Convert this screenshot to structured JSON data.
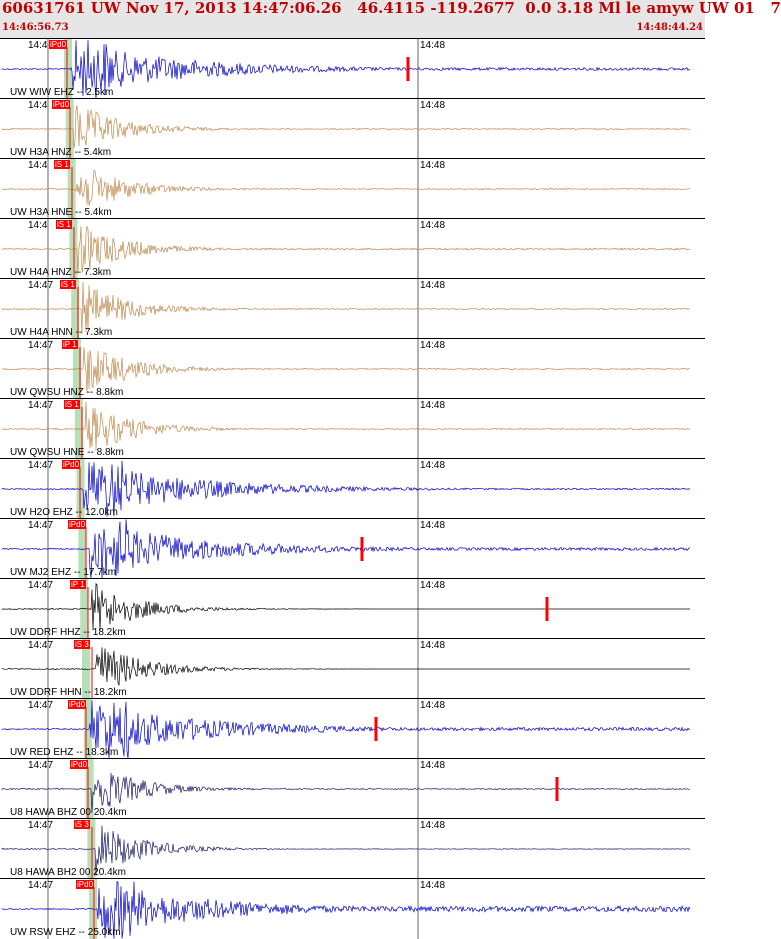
{
  "header": {
    "title": "60631761 UW Nov 17, 2013 14:47:06.26   46.4115 -119.2677  0.0 3.18 Ml le amyw UW 01   7",
    "start_time": "14:46:56.73",
    "end_time": "14:48:44.24"
  },
  "colors": {
    "header_text": "#c00000",
    "header_bg": "#e6e6e6",
    "pick_flag": "#ff0000",
    "window_band": "#b8e0b8"
  },
  "panels": [
    {
      "station": "UW WIW EHZ -- 2.5km",
      "tick1": "14:4",
      "tick2": "14:48",
      "pick": "iPd0",
      "color": "#0000cc",
      "clipped": true,
      "amp_tail": 0.05,
      "pickx": 67,
      "markerx": 408
    },
    {
      "station": "UW H3A HNZ -- 5.4km",
      "tick1": "14:4",
      "tick2": "14:48",
      "pick": "iPd0",
      "color": "#c08a50",
      "clipped": false,
      "amp_tail": 0.02,
      "pickx": 70,
      "markerx": null
    },
    {
      "station": "UW H3A HNE -- 5.4km",
      "tick1": "14:4",
      "tick2": "14:48",
      "pick": "iS 1",
      "color": "#c08a50",
      "clipped": false,
      "amp_tail": 0.02,
      "pickx": 72,
      "markerx": null
    },
    {
      "station": "UW H4A HNZ -- 7.3km",
      "tick1": "14:4",
      "tick2": "14:48",
      "pick": "iS 1",
      "color": "#c08a50",
      "clipped": false,
      "amp_tail": 0.03,
      "pickx": 74,
      "markerx": null
    },
    {
      "station": "UW H4A HNN -- 7.3km",
      "tick1": "14:47",
      "tick2": "14:48",
      "pick": "iS 1",
      "color": "#c08a50",
      "clipped": false,
      "amp_tail": 0.02,
      "pickx": 78,
      "markerx": null
    },
    {
      "station": "UW QWSU HNZ -- 8.8km",
      "tick1": "14:47",
      "tick2": "14:48",
      "pick": "iP 1",
      "color": "#c08a50",
      "clipped": false,
      "amp_tail": 0.02,
      "pickx": 80,
      "markerx": null
    },
    {
      "station": "UW QWSU HNE -- 8.8km",
      "tick1": "14:47",
      "tick2": "14:48",
      "pick": "iS 1",
      "color": "#c08a50",
      "clipped": false,
      "amp_tail": 0.02,
      "pickx": 82,
      "markerx": null
    },
    {
      "station": "UW H2O EHZ -- 12.0km",
      "tick1": "14:47",
      "tick2": "14:48",
      "pick": "iPd0",
      "color": "#0000cc",
      "clipped": true,
      "amp_tail": 0.03,
      "pickx": 80,
      "markerx": null
    },
    {
      "station": "UW MJ2 EHZ -- 17.7km",
      "tick1": "14:47",
      "tick2": "14:48",
      "pick": "iPd0",
      "color": "#0000cc",
      "clipped": true,
      "amp_tail": 0.05,
      "pickx": 86,
      "markerx": 362
    },
    {
      "station": "UW DDRF HHZ -- 18.2km",
      "tick1": "14:47",
      "tick2": "14:48",
      "pick": "iP 1",
      "color": "#000000",
      "clipped": false,
      "amp_tail": 0.0,
      "pickx": 88,
      "markerx": 547
    },
    {
      "station": "UW DDRF HHN -- 18.2km",
      "tick1": "14:47",
      "tick2": "14:48",
      "pick": "iS 3",
      "color": "#000000",
      "clipped": false,
      "amp_tail": 0.0,
      "pickx": 92,
      "markerx": null
    },
    {
      "station": "UW RED EHZ -- 18.3km",
      "tick1": "14:47",
      "tick2": "14:48",
      "pick": "iPd0",
      "color": "#0000cc",
      "clipped": true,
      "amp_tail": 0.06,
      "pickx": 86,
      "markerx": 376
    },
    {
      "station": "U8 HAWA BHZ 00 20.4km",
      "tick1": "14:47",
      "tick2": "14:48",
      "pick": "iPd0",
      "color": "#1a1a66",
      "clipped": false,
      "amp_tail": 0.02,
      "pickx": 88,
      "markerx": 557
    },
    {
      "station": "U8 HAWA BH2 00 20.4km",
      "tick1": "14:47",
      "tick2": "14:48",
      "pick": "iS 3",
      "color": "#1a1a66",
      "clipped": false,
      "amp_tail": 0.01,
      "pickx": 92,
      "markerx": null
    },
    {
      "station": "UW RSW EHZ -- 25.0km",
      "tick1": "14:47",
      "tick2": "14:48",
      "pick": "iPd0",
      "color": "#0000cc",
      "clipped": true,
      "amp_tail": 0.1,
      "pickx": 94,
      "markerx": null
    }
  ]
}
